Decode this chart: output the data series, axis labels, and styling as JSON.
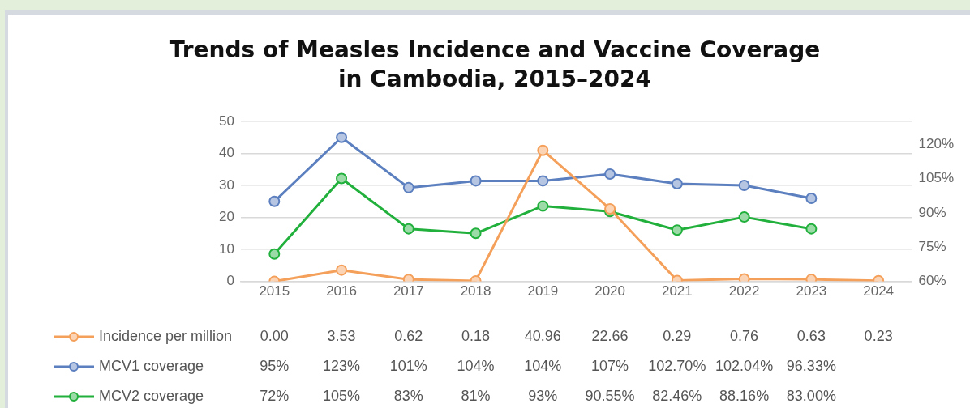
{
  "chart_data": {
    "type": "line",
    "title": "Trends of Measles Incidence and Vaccine Coverage in Cambodia, 2015–2024",
    "categories": [
      "2015",
      "2016",
      "2017",
      "2018",
      "2019",
      "2020",
      "2021",
      "2022",
      "2023",
      "2024"
    ],
    "series": [
      {
        "name": "Incidence per million",
        "color": "#f5a05a",
        "values": [
          0.0,
          3.53,
          0.62,
          0.18,
          40.96,
          22.66,
          0.29,
          0.76,
          0.63,
          0.23
        ],
        "value_labels": [
          "0.00",
          "3.53",
          "0.62",
          "0.18",
          "40.96",
          "22.66",
          "0.29",
          "0.76",
          "0.63",
          "0.23"
        ]
      },
      {
        "name": "MCV1 coverage",
        "color": "#5b7fbf",
        "axis": "y2",
        "values": [
          95,
          123,
          101,
          104,
          104,
          107,
          102.7,
          102.04,
          96.33,
          null
        ],
        "value_labels": [
          "95%",
          "123%",
          "101%",
          "104%",
          "104%",
          "107%",
          "102.70%",
          "102.04%",
          "96.33%",
          null
        ]
      },
      {
        "name": "MCV2 coverage",
        "color": "#22b03c",
        "axis": "y2",
        "values": [
          72,
          105,
          83,
          81,
          93,
          90.55,
          82.46,
          88.16,
          83.0,
          null
        ],
        "value_labels": [
          "72%",
          "105%",
          "83%",
          "81%",
          "93%",
          "90.55%",
          "82.46%",
          "88.16%",
          "83.00%",
          null
        ]
      }
    ],
    "ylim": [
      0,
      50
    ],
    "yticks": [
      0,
      10,
      20,
      30,
      40,
      50
    ],
    "y2lim": [
      60,
      130
    ],
    "y2ticks": [
      {
        "value": 60,
        "label": "60%"
      },
      {
        "value": 75,
        "label": "75%"
      },
      {
        "value": 90,
        "label": "90%"
      },
      {
        "value": 105,
        "label": "105%"
      },
      {
        "value": 120,
        "label": "120%"
      }
    ],
    "grid": "y",
    "legend": "bottom",
    "marker": "circle",
    "line_style": "solid"
  }
}
